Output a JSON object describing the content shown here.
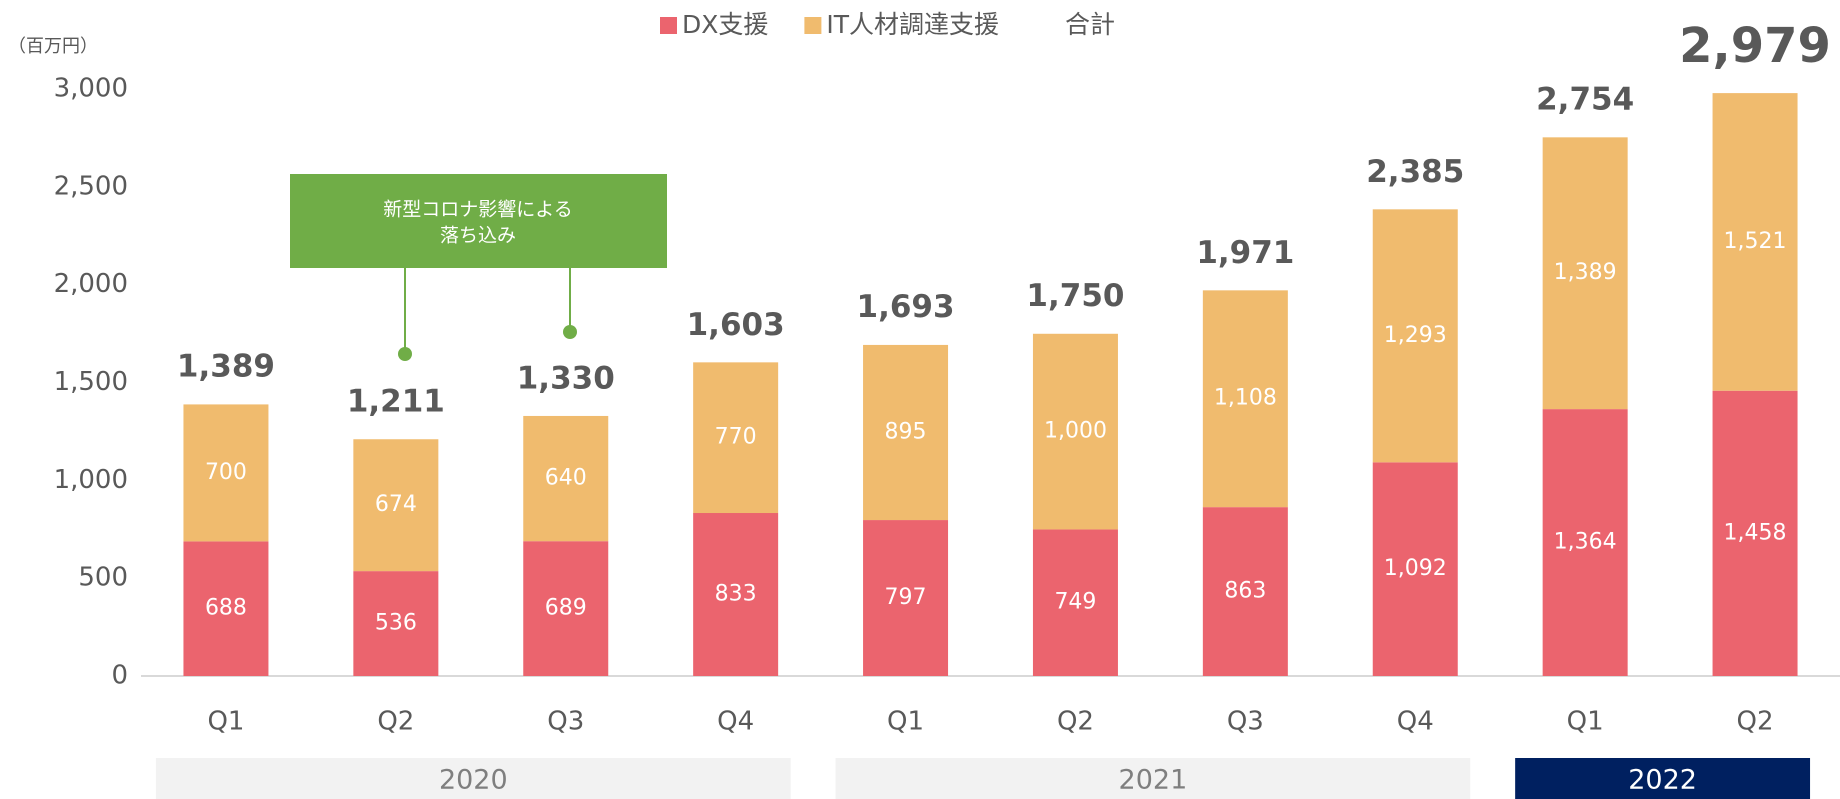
{
  "chart_data": {
    "type": "stacked_bar",
    "unit_label": "（百万円）",
    "categories": [
      "Q1",
      "Q2",
      "Q3",
      "Q4",
      "Q1",
      "Q2",
      "Q3",
      "Q4",
      "Q1",
      "Q2"
    ],
    "category_years": [
      "2020",
      "2020",
      "2020",
      "2020",
      "2021",
      "2021",
      "2021",
      "2021",
      "2022",
      "2022"
    ],
    "series": [
      {
        "name": "DX支援",
        "color": "#eb646e",
        "values": [
          688,
          536,
          689,
          833,
          797,
          749,
          863,
          1092,
          1364,
          1458
        ],
        "value_labels": [
          "688",
          "536",
          "689",
          "833",
          "797",
          "749",
          "863",
          "1,092",
          "1,364",
          "1,458"
        ]
      },
      {
        "name": "IT人材調達支援",
        "color": "#f0bb6e",
        "values": [
          700,
          674,
          640,
          770,
          895,
          1000,
          1108,
          1293,
          1389,
          1521
        ],
        "value_labels": [
          "700",
          "674",
          "640",
          "770",
          "895",
          "1,000",
          "1,108",
          "1,293",
          "1,389",
          "1,521"
        ]
      }
    ],
    "totals": {
      "name": "合計",
      "values": [
        1389,
        1211,
        1330,
        1603,
        1693,
        1750,
        1971,
        2385,
        2754,
        2979
      ],
      "value_labels": [
        "1,389",
        "1,211",
        "1,330",
        "1,603",
        "1,693",
        "1,750",
        "1,971",
        "2,385",
        "2,754",
        "2,979"
      ]
    },
    "annotation": [
      "新型コロナ影響による",
      "落ち込み"
    ],
    "ylim": [
      0,
      3000
    ],
    "yticks": [
      0,
      500,
      {
        "value": 1000,
        "label": "1,000"
      },
      {
        "value": 1500,
        "label": "1,500"
      },
      {
        "value": 2000,
        "label": "2,000"
      },
      {
        "value": 2500,
        "label": "2,500"
      },
      {
        "value": 3000,
        "label": "3,000"
      }
    ],
    "grid": false
  }
}
